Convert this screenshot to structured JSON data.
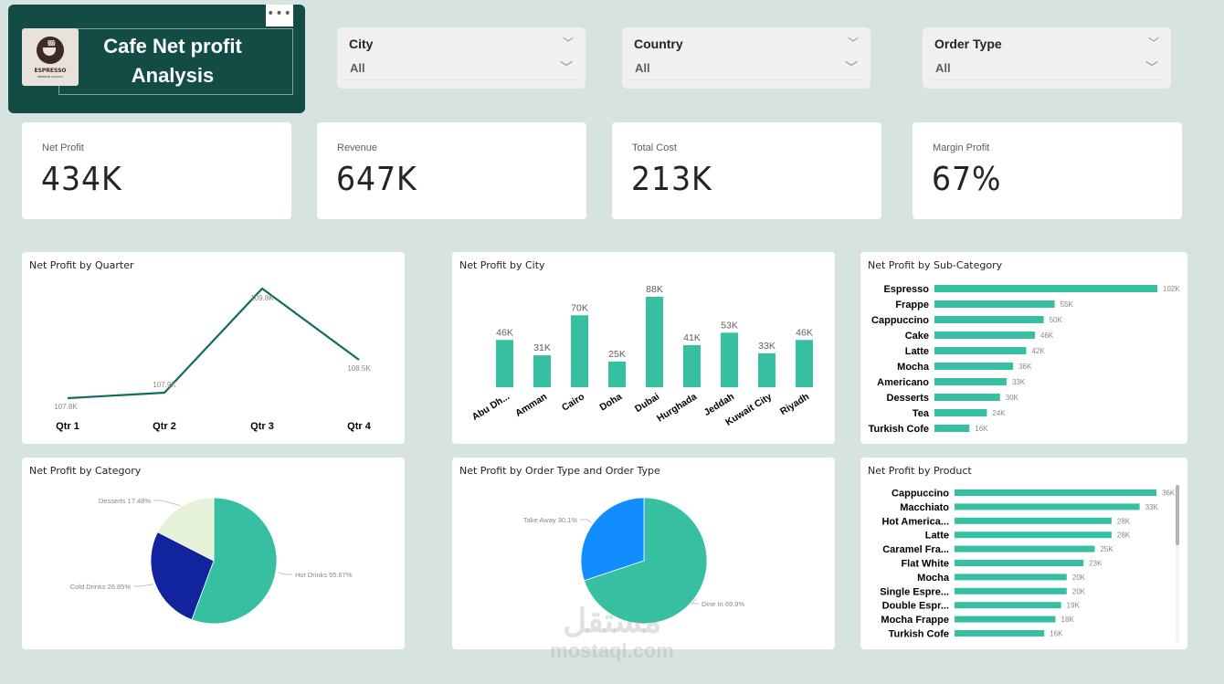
{
  "header": {
    "title": "Cafe Net profit Analysis",
    "title_line1": "Cafe Net profit",
    "title_line2": "Analysis",
    "more_options": "•••",
    "logo": {
      "word": "ESPRESSO",
      "sub": "PREMIUM QUALITY",
      "steam": "§§§"
    }
  },
  "slicers": [
    {
      "label": "City",
      "value": "All",
      "chevron": "﹀"
    },
    {
      "label": "Country",
      "value": "All",
      "chevron": "﹀"
    },
    {
      "label": "Order Type",
      "value": "All",
      "chevron": "﹀"
    }
  ],
  "kpis": [
    {
      "label": "Net Profit",
      "value": "434K"
    },
    {
      "label": "Revenue",
      "value": "647K"
    },
    {
      "label": "Total Cost",
      "value": "213K"
    },
    {
      "label": "Margin Profit",
      "value": "67%"
    }
  ],
  "colors": {
    "teal": "#37bfa1",
    "line": "#156b5f",
    "navy": "#12239e",
    "blue": "#118dff",
    "pale": "#e5f2d8",
    "title_bg": "#124c45",
    "page_bg": "#d7e3e1"
  },
  "watermark": {
    "arabic": "مستقل",
    "latin": "mostaql.com"
  },
  "chart_data": [
    {
      "id": "quarter",
      "type": "line",
      "title": "Net Profit by Quarter",
      "categories": [
        "Qtr 1",
        "Qtr 2",
        "Qtr 3",
        "Qtr 4"
      ],
      "values": [
        107.8,
        107.9,
        109.8,
        108.5
      ],
      "labels": [
        "107.8K",
        "107.9K",
        "109.8K",
        "108.5K"
      ],
      "unit": "K",
      "xlabel": "",
      "ylabel": "",
      "ylim": [
        107.7,
        109.8
      ],
      "grid": false
    },
    {
      "id": "city",
      "type": "bar",
      "title": "Net Profit by City",
      "categories": [
        "Abu Dh...",
        "Amman",
        "Cairo",
        "Doha",
        "Dubai",
        "Hurghada",
        "Jeddah",
        "Kuwait City",
        "Riyadh"
      ],
      "values": [
        46,
        31,
        70,
        25,
        88,
        41,
        53,
        33,
        46
      ],
      "labels": [
        "46K",
        "31K",
        "70K",
        "25K",
        "88K",
        "41K",
        "53K",
        "33K",
        "46K"
      ],
      "unit": "K",
      "ylim": [
        0,
        88
      ],
      "grid": false
    },
    {
      "id": "subcategory",
      "type": "bar",
      "orientation": "horizontal",
      "title": "Net Profit by Sub-Category",
      "categories": [
        "Espresso",
        "Frappe",
        "Cappuccino",
        "Cake",
        "Latte",
        "Mocha",
        "Americano",
        "Desserts",
        "Tea",
        "Turkish Cofe"
      ],
      "values": [
        102,
        55,
        50,
        46,
        42,
        36,
        33,
        30,
        24,
        16
      ],
      "labels": [
        "102K",
        "55K",
        "50K",
        "46K",
        "42K",
        "36K",
        "33K",
        "30K",
        "24K",
        "16K"
      ],
      "unit": "K",
      "xlim": [
        0,
        102
      ]
    },
    {
      "id": "category",
      "type": "pie",
      "title": "Net Profit by Category",
      "slices": [
        {
          "name": "Hot Drinks",
          "value": 55.67,
          "label": "Hot Drinks 55.67%",
          "color": "#37bfa1"
        },
        {
          "name": "Cold Drinks",
          "value": 26.85,
          "label": "Cold Drinks 26.85%",
          "color": "#12239e"
        },
        {
          "name": "Desserts",
          "value": 17.48,
          "label": "Desserts 17.48%",
          "color": "#e5f2d8"
        }
      ]
    },
    {
      "id": "ordertype",
      "type": "pie",
      "title": "Net Profit by Order Type and Order Type",
      "slices": [
        {
          "name": "Dine In",
          "value": 69.9,
          "label": "Dine In 69.9%",
          "color": "#37bfa1"
        },
        {
          "name": "Take Away",
          "value": 30.1,
          "label": "Take Away 30.1%",
          "color": "#118dff"
        }
      ]
    },
    {
      "id": "product",
      "type": "bar",
      "orientation": "horizontal",
      "title": "Net Profit by Product",
      "categories": [
        "Cappuccino",
        "Macchiato",
        "Hot America...",
        "Latte",
        "Caramel Fra...",
        "Flat White",
        "Mocha",
        "Single Espre...",
        "Double Espr...",
        "Mocha Frappe",
        "Turkish Cofe"
      ],
      "values": [
        36,
        33,
        28,
        28,
        25,
        23,
        20,
        20,
        19,
        18,
        16
      ],
      "labels": [
        "36K",
        "33K",
        "28K",
        "28K",
        "25K",
        "23K",
        "20K",
        "20K",
        "19K",
        "18K",
        "16K"
      ],
      "unit": "K",
      "xlim": [
        0,
        36
      ]
    }
  ]
}
